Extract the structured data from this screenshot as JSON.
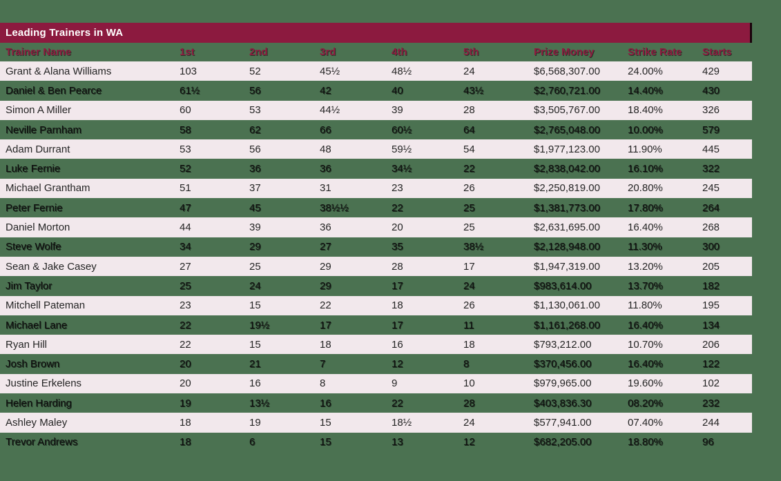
{
  "title": "Leading Trainers in WA",
  "colors": {
    "page_background": "#4b7251",
    "title_bar": "#8c1a3f",
    "title_text": "#ffffff",
    "header_text": "#8e1c40",
    "row_light_background": "#f2e8ec",
    "row_text": "#1a1a1a"
  },
  "chart_data": {
    "type": "table",
    "title": "Leading Trainers in WA",
    "columns": [
      "Trainer Name",
      "1st",
      "2nd",
      "3rd",
      "4th",
      "5th",
      "Prize Money",
      "Strike Rate",
      "Starts"
    ],
    "rows": [
      [
        "Grant & Alana Williams",
        "103",
        "52",
        "45½",
        "48½",
        "24",
        "$6,568,307.00",
        "24.00%",
        "429"
      ],
      [
        "Daniel & Ben Pearce",
        "61½",
        "56",
        "42",
        "40",
        "43½",
        "$2,760,721.00",
        "14.40%",
        "430"
      ],
      [
        "Simon A Miller",
        "60",
        "53",
        "44½",
        "39",
        "28",
        "$3,505,767.00",
        "18.40%",
        "326"
      ],
      [
        "Neville Parnham",
        "58",
        "62",
        "66",
        "60½",
        "64",
        "$2,765,048.00",
        "10.00%",
        "579"
      ],
      [
        "Adam Durrant",
        "53",
        "56",
        "48",
        "59½",
        "54",
        "$1,977,123.00",
        "11.90%",
        "445"
      ],
      [
        "Luke Fernie",
        "52",
        "36",
        "36",
        "34½",
        "22",
        "$2,838,042.00",
        "16.10%",
        "322"
      ],
      [
        "Michael Grantham",
        "51",
        "37",
        "31",
        "23",
        "26",
        "$2,250,819.00",
        "20.80%",
        "245"
      ],
      [
        "Peter Fernie",
        "47",
        "45",
        "38½½",
        "22",
        "25",
        "$1,381,773.00",
        "17.80%",
        "264"
      ],
      [
        "Daniel Morton",
        "44",
        "39",
        "36",
        "20",
        "25",
        "$2,631,695.00",
        "16.40%",
        "268"
      ],
      [
        "Steve Wolfe",
        "34",
        "29",
        "27",
        "35",
        "38½",
        "$2,128,948.00",
        "11.30%",
        "300"
      ],
      [
        "Sean & Jake Casey",
        "27",
        "25",
        "29",
        "28",
        "17",
        "$1,947,319.00",
        "13.20%",
        "205"
      ],
      [
        "Jim Taylor",
        "25",
        "24",
        "29",
        "17",
        "24",
        "$983,614.00",
        "13.70%",
        "182"
      ],
      [
        "Mitchell Pateman",
        "23",
        "15",
        "22",
        "18",
        "26",
        "$1,130,061.00",
        "11.80%",
        "195"
      ],
      [
        "Michael Lane",
        "22",
        "19½",
        "17",
        "17",
        "11",
        "$1,161,268.00",
        "16.40%",
        "134"
      ],
      [
        "Ryan Hill",
        "22",
        "15",
        "18",
        "16",
        "18",
        "$793,212.00",
        "10.70%",
        "206"
      ],
      [
        "Josh Brown",
        "20",
        "21",
        "7",
        "12",
        "8",
        "$370,456.00",
        "16.40%",
        "122"
      ],
      [
        "Justine Erkelens",
        "20",
        "16",
        "8",
        "9",
        "10",
        "$979,965.00",
        "19.60%",
        "102"
      ],
      [
        "Helen Harding",
        "19",
        "13½",
        "16",
        "22",
        "28",
        "$403,836.30",
        "08.20%",
        "232"
      ],
      [
        "Ashley Maley",
        "18",
        "19",
        "15",
        "18½",
        "24",
        "$577,941.00",
        "07.40%",
        "244"
      ],
      [
        "Trevor Andrews",
        "18",
        "6",
        "15",
        "13",
        "12",
        "$682,205.00",
        "18.80%",
        "96"
      ]
    ],
    "column_slugs": [
      "trainer-name",
      "1st",
      "2nd",
      "3rd",
      "4th",
      "5th",
      "prize-money",
      "strike-rate",
      "starts"
    ]
  }
}
